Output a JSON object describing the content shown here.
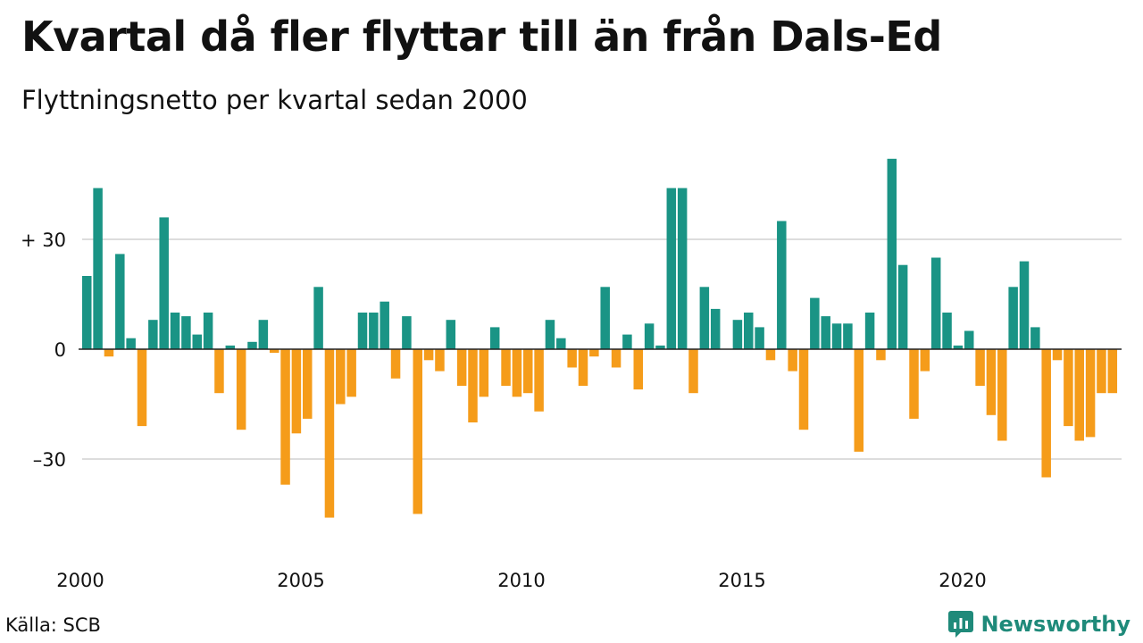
{
  "header": {
    "title": "Kvartal då fler flyttar till än från Dals-Ed",
    "subtitle": "Flyttningsnetto per kvartal sedan 2000"
  },
  "footer": {
    "source": "Källa: SCB",
    "brand": "Newsworthy"
  },
  "colors": {
    "positive": "#1a9485",
    "negative": "#f59c1a",
    "grid": "#dddddd",
    "brand": "#1f8a7a"
  },
  "icons": {
    "brand": "chart-logo-icon"
  },
  "chart_data": {
    "type": "bar",
    "title": "Kvartal då fler flyttar till än från Dals-Ed",
    "subtitle": "Flyttningsnetto per kvartal sedan 2000",
    "start_year": 2000,
    "periods_per_year": 4,
    "ylim": [
      -50,
      55
    ],
    "yticks": [
      {
        "value": 30,
        "label": "+ 30"
      },
      {
        "value": 0,
        "label": "0"
      },
      {
        "value": -30,
        "label": "–30"
      }
    ],
    "xticks": [
      {
        "index": 0,
        "label": "2000"
      },
      {
        "index": 20,
        "label": "2005"
      },
      {
        "index": 40,
        "label": "2010"
      },
      {
        "index": 60,
        "label": "2015"
      },
      {
        "index": 80,
        "label": "2020"
      }
    ],
    "grid": true,
    "legend": "none",
    "values": [
      20,
      44,
      -2,
      26,
      3,
      -21,
      8,
      36,
      10,
      9,
      4,
      10,
      -12,
      1,
      -22,
      2,
      8,
      -1,
      -37,
      -23,
      -19,
      17,
      -46,
      -15,
      -13,
      10,
      10,
      13,
      -8,
      9,
      -45,
      -3,
      -6,
      8,
      -10,
      -20,
      -13,
      6,
      -10,
      -13,
      -12,
      -17,
      8,
      3,
      -5,
      -10,
      -2,
      17,
      -5,
      4,
      -11,
      7,
      1,
      44,
      44,
      -12,
      17,
      11,
      0,
      8,
      10,
      6,
      -3,
      35,
      -6,
      -22,
      14,
      9,
      7,
      7,
      -28,
      10,
      -3,
      52,
      23,
      -19,
      -6,
      25,
      10,
      1,
      5,
      -10,
      -18,
      -25,
      17,
      24,
      6,
      -35,
      -3,
      -21,
      -25,
      -24,
      -12,
      -12
    ]
  }
}
